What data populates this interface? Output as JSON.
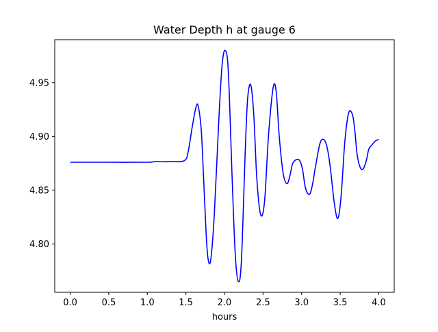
{
  "chart_data": {
    "type": "line",
    "title": "Water Depth h at gauge 6",
    "xlabel": "hours",
    "ylabel": "",
    "xlim": [
      -0.2,
      4.2
    ],
    "ylim": [
      4.755,
      4.99
    ],
    "grid": false,
    "x_ticks": [
      0.0,
      0.5,
      1.0,
      1.5,
      2.0,
      2.5,
      3.0,
      3.5,
      4.0
    ],
    "x_tick_labels": [
      "0.0",
      "0.5",
      "1.0",
      "1.5",
      "2.0",
      "2.5",
      "3.0",
      "3.5",
      "4.0"
    ],
    "y_ticks": [
      4.8,
      4.85,
      4.9,
      4.95
    ],
    "y_tick_labels": [
      "4.80",
      "4.85",
      "4.90",
      "4.95"
    ],
    "series": [
      {
        "color": "#0000ff",
        "x": [
          0.0,
          0.5,
          1.0,
          1.1,
          1.3,
          1.48,
          1.53,
          1.58,
          1.63,
          1.66,
          1.7,
          1.73,
          1.77,
          1.8,
          1.83,
          1.87,
          1.93,
          1.97,
          2.01,
          2.05,
          2.1,
          2.14,
          2.18,
          2.22,
          2.27,
          2.3,
          2.34,
          2.38,
          2.42,
          2.47,
          2.52,
          2.57,
          2.63,
          2.67,
          2.71,
          2.76,
          2.81,
          2.85,
          2.88,
          2.92,
          2.97,
          3.01,
          3.05,
          3.1,
          3.14,
          3.18,
          3.24,
          3.29,
          3.33,
          3.37,
          3.42,
          3.46,
          3.49,
          3.52,
          3.56,
          3.61,
          3.66,
          3.69,
          3.72,
          3.76,
          3.8,
          3.84,
          3.87,
          3.91,
          3.96,
          4.0
        ],
        "y": [
          4.876,
          4.876,
          4.876,
          4.8765,
          4.8765,
          4.8775,
          4.886,
          4.908,
          4.927,
          4.928,
          4.905,
          4.86,
          4.8,
          4.782,
          4.79,
          4.83,
          4.92,
          4.967,
          4.98,
          4.96,
          4.86,
          4.79,
          4.765,
          4.785,
          4.888,
          4.935,
          4.948,
          4.92,
          4.86,
          4.827,
          4.84,
          4.9,
          4.945,
          4.942,
          4.9,
          4.866,
          4.856,
          4.864,
          4.874,
          4.878,
          4.878,
          4.87,
          4.852,
          4.846,
          4.855,
          4.872,
          4.894,
          4.897,
          4.89,
          4.872,
          4.84,
          4.824,
          4.83,
          4.852,
          4.895,
          4.922,
          4.92,
          4.905,
          4.883,
          4.871,
          4.87,
          4.878,
          4.888,
          4.892,
          4.896,
          4.897
        ]
      }
    ]
  }
}
